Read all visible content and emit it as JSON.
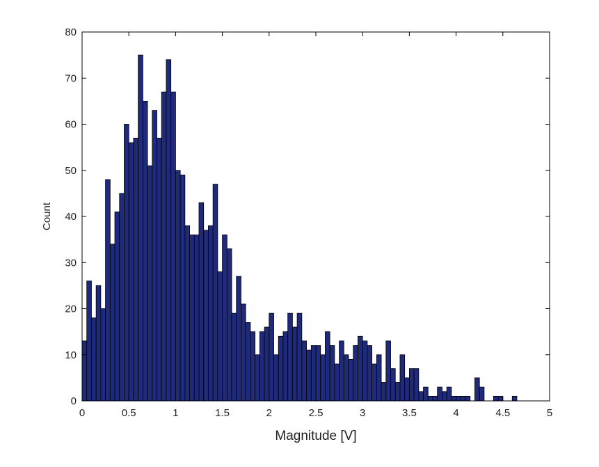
{
  "chart_data": {
    "type": "histogram",
    "xlabel": "Magnitude [V]",
    "ylabel": "Count",
    "color": "#1f2a7a",
    "edgecolor": "#000000",
    "bins": [
      0,
      0.05,
      0.1,
      0.15,
      0.2,
      0.25,
      0.3,
      0.35,
      0.4,
      0.45,
      0.5,
      0.55,
      0.6,
      0.65,
      0.7,
      0.75,
      0.8,
      0.85,
      0.9,
      0.95,
      1,
      1.05,
      1.1,
      1.15,
      1.2,
      1.25,
      1.3,
      1.35,
      1.4,
      1.45,
      1.5,
      1.55,
      1.6,
      1.65,
      1.7,
      1.75,
      1.8,
      1.85,
      1.9,
      1.95,
      2,
      2.05,
      2.1,
      2.15,
      2.2,
      2.25,
      2.3,
      2.35,
      2.4,
      2.45,
      2.5,
      2.55,
      2.6,
      2.65,
      2.7,
      2.75,
      2.8,
      2.85,
      2.9,
      2.95,
      3,
      3.05,
      3.1,
      3.15,
      3.2,
      3.25,
      3.3,
      3.35,
      3.4,
      3.45,
      3.5,
      3.55,
      3.6,
      3.65,
      3.7,
      3.75,
      3.8,
      3.85,
      3.9,
      3.95,
      4,
      4.05,
      4.1,
      4.15,
      4.2,
      4.25,
      4.3,
      4.35,
      4.4,
      4.45,
      4.5,
      4.55,
      4.6,
      4.65
    ],
    "values": [
      13,
      26,
      18,
      25,
      20,
      48,
      34,
      41,
      45,
      60,
      56,
      57,
      75,
      65,
      51,
      63,
      57,
      67,
      74,
      67,
      50,
      49,
      38,
      36,
      36,
      43,
      37,
      38,
      47,
      28,
      36,
      33,
      19,
      27,
      21,
      17,
      15,
      10,
      15,
      16,
      19,
      10,
      14,
      15,
      19,
      16,
      19,
      13,
      11,
      12,
      12,
      10,
      15,
      12,
      8,
      13,
      10,
      9,
      12,
      14,
      13,
      12,
      8,
      10,
      4,
      13,
      7,
      4,
      10,
      5,
      7,
      7,
      2,
      3,
      1,
      1,
      3,
      2,
      3,
      1,
      1,
      1,
      1,
      0,
      5,
      3,
      0,
      0,
      1,
      1,
      0,
      0,
      1
    ],
    "xlim": [
      0,
      5
    ],
    "xticks": [
      0,
      0.5,
      1,
      1.5,
      2,
      2.5,
      3,
      3.5,
      4,
      4.5,
      5
    ],
    "ylim": [
      0,
      80
    ],
    "yticks": [
      0,
      10,
      20,
      30,
      40,
      50,
      60,
      70,
      80
    ]
  }
}
